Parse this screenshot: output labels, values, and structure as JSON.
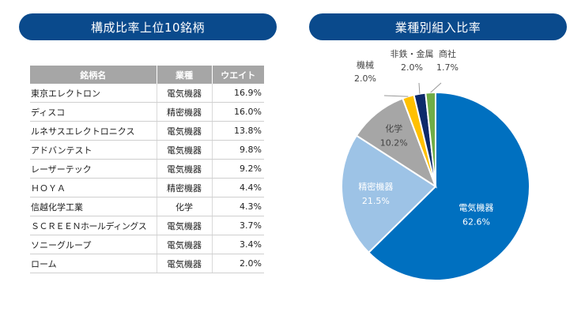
{
  "left_title": "構成比率上位10銘柄",
  "right_title": "業種別組入比率",
  "table": {
    "headers": [
      "銘柄名",
      "業種",
      "ウエイト"
    ],
    "rows": [
      {
        "name": "東京エレクトロン",
        "industry": "電気機器",
        "weight": "16.9%"
      },
      {
        "name": "ディスコ",
        "industry": "精密機器",
        "weight": "16.0%"
      },
      {
        "name": "ルネサスエレクトロニクス",
        "industry": "電気機器",
        "weight": "13.8%"
      },
      {
        "name": "アドバンテスト",
        "industry": "電気機器",
        "weight": "9.8%"
      },
      {
        "name": "レーザーテック",
        "industry": "電気機器",
        "weight": "9.2%"
      },
      {
        "name": "ＨＯＹＡ",
        "industry": "精密機器",
        "weight": "4.4%"
      },
      {
        "name": "信越化学工業",
        "industry": "化学",
        "weight": "4.3%"
      },
      {
        "name": "ＳＣＲＥＥＮホールディングス",
        "industry": "電気機器",
        "weight": "3.7%"
      },
      {
        "name": "ソニーグループ",
        "industry": "電気機器",
        "weight": "3.4%"
      },
      {
        "name": "ローム",
        "industry": "電気機器",
        "weight": "2.0%"
      }
    ]
  },
  "chart_data": {
    "type": "pie",
    "title": "業種別組入比率",
    "slices": [
      {
        "label": "電気機器",
        "value": 62.6,
        "value_label": "62.6%",
        "color": "#0070c0"
      },
      {
        "label": "精密機器",
        "value": 21.5,
        "value_label": "21.5%",
        "color": "#9dc3e6"
      },
      {
        "label": "化学",
        "value": 10.2,
        "value_label": "10.2%",
        "color": "#a6a6a6"
      },
      {
        "label": "機械",
        "value": 2.0,
        "value_label": "2.0%",
        "color": "#ffc000"
      },
      {
        "label": "非鉄・金属",
        "value": 2.0,
        "value_label": "2.0%",
        "color": "#0d2a6b"
      },
      {
        "label": "商社",
        "value": 1.7,
        "value_label": "1.7%",
        "color": "#70ad47"
      }
    ]
  }
}
